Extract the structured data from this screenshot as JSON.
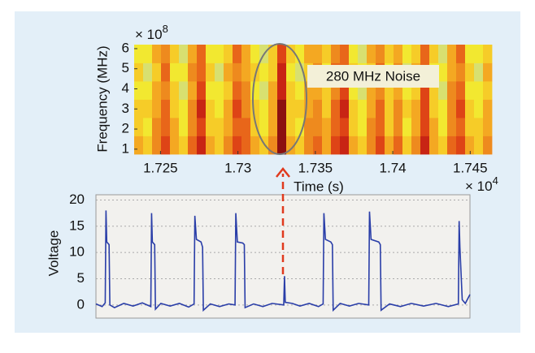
{
  "chart_data": [
    {
      "type": "heatmap",
      "y_label": "Frequency (MHz)",
      "x_label": "Time (s)",
      "y_multiplier": "× 10",
      "y_exponent": "8",
      "x_multiplier": "× 10",
      "x_exponent": "4",
      "annotation": "280 MHz Noise",
      "xlim": [
        1.7233,
        1.7464
      ],
      "ylim": [
        0.75,
        6.2
      ],
      "xticks": [
        1.725,
        1.73,
        1.735,
        1.74,
        1.745
      ],
      "yticks": [
        1,
        2,
        3,
        4,
        5,
        6
      ],
      "colors": [
        "#c8d890",
        "#d8e070",
        "#f2e830",
        "#f6cc28",
        "#f4a822",
        "#ee8a1e",
        "#e8661a",
        "#de4416",
        "#c82414",
        "#8c1010"
      ],
      "z": [
        [
          4,
          3,
          5,
          7,
          4,
          3,
          6,
          8,
          4,
          3,
          5,
          7,
          6,
          4,
          3,
          5,
          9,
          4,
          3,
          5,
          6,
          4,
          7,
          8,
          4,
          3,
          5,
          7,
          4,
          6,
          3,
          5,
          8,
          4,
          3,
          6,
          7,
          4,
          3,
          5
        ],
        [
          3,
          2,
          5,
          6,
          4,
          2,
          5,
          7,
          3,
          3,
          4,
          6,
          6,
          3,
          2,
          4,
          9,
          3,
          2,
          5,
          5,
          4,
          6,
          7,
          3,
          2,
          5,
          6,
          3,
          5,
          2,
          4,
          7,
          4,
          2,
          5,
          6,
          3,
          3,
          4
        ],
        [
          3,
          3,
          4,
          6,
          3,
          2,
          5,
          8,
          3,
          2,
          4,
          7,
          5,
          3,
          2,
          4,
          9,
          3,
          3,
          4,
          5,
          3,
          6,
          8,
          3,
          2,
          4,
          6,
          3,
          5,
          3,
          4,
          7,
          3,
          2,
          5,
          7,
          3,
          2,
          4
        ],
        [
          2,
          2,
          4,
          5,
          3,
          1,
          4,
          7,
          2,
          2,
          3,
          6,
          5,
          2,
          1,
          4,
          8,
          3,
          2,
          4,
          4,
          3,
          5,
          7,
          2,
          1,
          4,
          5,
          3,
          4,
          2,
          3,
          7,
          3,
          1,
          5,
          6,
          2,
          2,
          3
        ],
        [
          3,
          1,
          3,
          6,
          2,
          2,
          5,
          6,
          3,
          1,
          4,
          5,
          4,
          3,
          2,
          3,
          8,
          2,
          1,
          3,
          5,
          2,
          6,
          6,
          3,
          2,
          3,
          6,
          2,
          5,
          1,
          4,
          6,
          2,
          2,
          4,
          5,
          3,
          1,
          4
        ],
        [
          2,
          2,
          4,
          5,
          3,
          1,
          4,
          6,
          2,
          2,
          3,
          6,
          4,
          2,
          1,
          3,
          7,
          3,
          2,
          4,
          4,
          3,
          5,
          6,
          2,
          1,
          4,
          5,
          3,
          4,
          2,
          3,
          6,
          3,
          1,
          4,
          6,
          2,
          2,
          3
        ]
      ]
    },
    {
      "type": "line",
      "y_label": "Voltage",
      "color": "#2a3ea8",
      "grid": true,
      "xlim": [
        17208,
        17450
      ],
      "ylim": [
        -2.5,
        21
      ],
      "yticks": [
        0,
        5,
        10,
        15,
        20
      ],
      "x": [
        17208,
        17212,
        17214,
        17214.5,
        17215,
        17216.5,
        17217,
        17220,
        17226,
        17232,
        17238,
        17243.5,
        17244,
        17244.5,
        17246,
        17246.5,
        17250,
        17256,
        17262,
        17268,
        17271.5,
        17272,
        17273,
        17276,
        17277,
        17277.5,
        17282,
        17288,
        17294,
        17298,
        17298.5,
        17299.5,
        17303,
        17304,
        17304.5,
        17310,
        17316,
        17322,
        17329.5,
        17330,
        17330.5,
        17335,
        17340,
        17346,
        17352,
        17355,
        17355.5,
        17356.5,
        17360,
        17361,
        17361.5,
        17366,
        17372,
        17378,
        17384.5,
        17385,
        17386,
        17391,
        17392,
        17392.5,
        17398,
        17405,
        17412,
        17420,
        17428,
        17436,
        17442.5,
        17443,
        17443.5,
        17445,
        17447,
        17450
      ],
      "values": [
        0.2,
        -0.3,
        0.4,
        18,
        12,
        11.5,
        0,
        -0.5,
        0.3,
        -0.2,
        0.4,
        -0.3,
        17.5,
        12,
        11.5,
        -0.8,
        0.3,
        -0.2,
        0.3,
        -0.4,
        0.2,
        17,
        12.5,
        12,
        11,
        -1,
        0.2,
        -0.3,
        0.2,
        0,
        17.5,
        12,
        11.8,
        11.5,
        -0.5,
        0.2,
        -0.3,
        0.3,
        0,
        5.5,
        0.5,
        0.3,
        -0.2,
        0.3,
        -0.3,
        0.2,
        17.5,
        12.5,
        12,
        11.5,
        -1,
        0.3,
        -0.2,
        0.3,
        0,
        17.8,
        12.5,
        12,
        11.5,
        -1,
        0.2,
        -0.3,
        0.3,
        -0.2,
        0.3,
        -0.3,
        0.2,
        16,
        11,
        1,
        0.3,
        2
      ]
    }
  ]
}
